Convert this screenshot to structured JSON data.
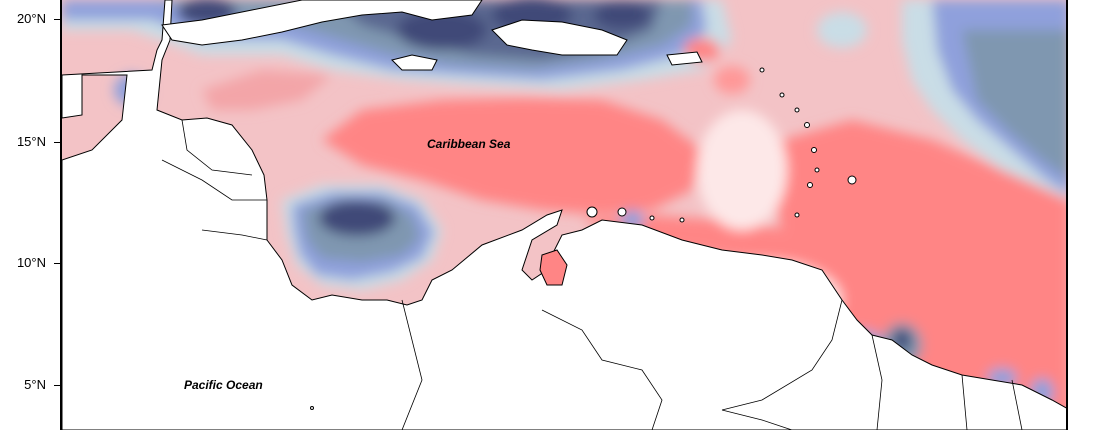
{
  "map": {
    "latitude_labels": [
      "20°N",
      "15°N",
      "10°N",
      "5°N"
    ],
    "water_bodies": {
      "caribbean": "Caribbean Sea",
      "pacific": "Pacific Ocean"
    },
    "color_scale": {
      "strong_negative": "#3f4a78",
      "negative": "#7f97b0",
      "weak_negative": "#8fa0dc",
      "near_zero_cool": "#c9dde6",
      "near_zero_warm": "#fde2e2",
      "weak_positive": "#f3b5b8",
      "positive": "#ff8585"
    }
  }
}
